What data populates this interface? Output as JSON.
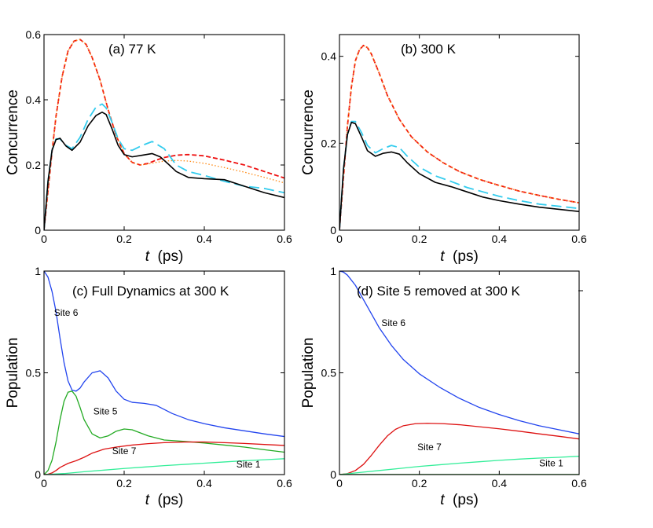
{
  "chart_data": [
    {
      "id": "a",
      "type": "line",
      "title": "(a) 77 K",
      "xlabel": "t  (ps)",
      "ylabel": "Concurrence",
      "xlim": [
        0,
        0.6
      ],
      "ylim": [
        0,
        0.6
      ],
      "xticks": [
        {
          "v": 0,
          "label": "0"
        },
        {
          "v": 0.2,
          "label": "0.2"
        },
        {
          "v": 0.4,
          "label": "0.4"
        },
        {
          "v": 0.6,
          "label": "0.6"
        }
      ],
      "yticks": [
        {
          "v": 0,
          "label": "0"
        },
        {
          "v": 0.2,
          "label": "0.2"
        },
        {
          "v": 0.4,
          "label": "0.4"
        },
        {
          "v": 0.6,
          "label": "0.6"
        }
      ],
      "series": [
        {
          "name": "red dashed",
          "color": "#ee1111",
          "style": "dash",
          "width": 1.8,
          "x": [
            0,
            0.01,
            0.02,
            0.03,
            0.045,
            0.06,
            0.075,
            0.09,
            0.105,
            0.12,
            0.14,
            0.16,
            0.18,
            0.2,
            0.22,
            0.24,
            0.26,
            0.28,
            0.3,
            0.33,
            0.36,
            0.4,
            0.45,
            0.5,
            0.55,
            0.6
          ],
          "y": [
            0,
            0.12,
            0.24,
            0.35,
            0.47,
            0.55,
            0.58,
            0.585,
            0.57,
            0.53,
            0.46,
            0.37,
            0.29,
            0.235,
            0.208,
            0.2,
            0.205,
            0.215,
            0.223,
            0.23,
            0.232,
            0.228,
            0.215,
            0.2,
            0.18,
            0.16
          ]
        },
        {
          "name": "orange dotted",
          "color": "#ff8811",
          "style": "dot",
          "width": 1.3,
          "x": [
            0,
            0.01,
            0.02,
            0.03,
            0.045,
            0.06,
            0.075,
            0.09,
            0.105,
            0.12,
            0.14,
            0.16,
            0.18,
            0.2,
            0.22,
            0.24,
            0.26,
            0.28,
            0.3,
            0.33,
            0.36,
            0.4,
            0.45,
            0.5,
            0.55,
            0.6
          ],
          "y": [
            0,
            0.12,
            0.24,
            0.35,
            0.47,
            0.55,
            0.58,
            0.585,
            0.57,
            0.53,
            0.46,
            0.37,
            0.29,
            0.235,
            0.208,
            0.2,
            0.203,
            0.208,
            0.212,
            0.214,
            0.212,
            0.205,
            0.192,
            0.178,
            0.162,
            0.145
          ]
        },
        {
          "name": "cyan long-dashed",
          "color": "#33ccee",
          "style": "longdash",
          "width": 1.8,
          "x": [
            0,
            0.01,
            0.02,
            0.03,
            0.04,
            0.055,
            0.07,
            0.09,
            0.11,
            0.13,
            0.145,
            0.155,
            0.17,
            0.185,
            0.2,
            0.22,
            0.245,
            0.27,
            0.3,
            0.33,
            0.36,
            0.4,
            0.45,
            0.5,
            0.55,
            0.6
          ],
          "y": [
            0,
            0.15,
            0.245,
            0.28,
            0.28,
            0.26,
            0.25,
            0.285,
            0.34,
            0.378,
            0.387,
            0.375,
            0.33,
            0.28,
            0.25,
            0.245,
            0.26,
            0.272,
            0.25,
            0.2,
            0.18,
            0.168,
            0.15,
            0.135,
            0.128,
            0.115
          ]
        },
        {
          "name": "black solid",
          "color": "#000000",
          "style": "solid",
          "width": 1.6,
          "x": [
            0,
            0.01,
            0.02,
            0.03,
            0.04,
            0.055,
            0.07,
            0.09,
            0.11,
            0.13,
            0.145,
            0.155,
            0.17,
            0.185,
            0.2,
            0.22,
            0.245,
            0.27,
            0.29,
            0.31,
            0.33,
            0.36,
            0.4,
            0.45,
            0.5,
            0.55,
            0.6
          ],
          "y": [
            0,
            0.15,
            0.245,
            0.278,
            0.282,
            0.258,
            0.245,
            0.27,
            0.32,
            0.352,
            0.362,
            0.355,
            0.31,
            0.26,
            0.232,
            0.225,
            0.23,
            0.235,
            0.225,
            0.203,
            0.18,
            0.162,
            0.158,
            0.155,
            0.135,
            0.115,
            0.1
          ]
        }
      ],
      "annotations": []
    },
    {
      "id": "b",
      "type": "line",
      "title": "(b) 300 K",
      "xlabel": "t  (ps)",
      "ylabel": "Concurrence",
      "xlim": [
        0,
        0.6
      ],
      "ylim": [
        0,
        0.45
      ],
      "xticks": [
        {
          "v": 0,
          "label": "0"
        },
        {
          "v": 0.2,
          "label": "0.2"
        },
        {
          "v": 0.4,
          "label": "0.4"
        },
        {
          "v": 0.6,
          "label": "0.6"
        }
      ],
      "yticks": [
        {
          "v": 0,
          "label": "0"
        },
        {
          "v": 0.2,
          "label": "0.2"
        },
        {
          "v": 0.4,
          "label": "0.4"
        }
      ],
      "series": [
        {
          "name": "red dashed",
          "color": "#ee1111",
          "style": "dash",
          "width": 1.8,
          "x": [
            0,
            0.01,
            0.02,
            0.03,
            0.04,
            0.05,
            0.06,
            0.07,
            0.08,
            0.1,
            0.12,
            0.15,
            0.18,
            0.22,
            0.26,
            0.3,
            0.35,
            0.4,
            0.45,
            0.5,
            0.55,
            0.6
          ],
          "y": [
            0,
            0.12,
            0.24,
            0.33,
            0.39,
            0.415,
            0.425,
            0.42,
            0.405,
            0.36,
            0.31,
            0.255,
            0.215,
            0.18,
            0.155,
            0.135,
            0.117,
            0.103,
            0.09,
            0.08,
            0.071,
            0.063
          ]
        },
        {
          "name": "orange dotted",
          "color": "#ff8811",
          "style": "dot",
          "width": 1.3,
          "x": [
            0,
            0.01,
            0.02,
            0.03,
            0.04,
            0.05,
            0.06,
            0.07,
            0.08,
            0.1,
            0.12,
            0.15,
            0.18,
            0.22,
            0.26,
            0.3,
            0.35,
            0.4,
            0.45,
            0.5,
            0.55,
            0.6
          ],
          "y": [
            0,
            0.12,
            0.24,
            0.33,
            0.39,
            0.415,
            0.425,
            0.42,
            0.405,
            0.36,
            0.31,
            0.255,
            0.215,
            0.18,
            0.155,
            0.135,
            0.117,
            0.103,
            0.09,
            0.08,
            0.071,
            0.063
          ]
        },
        {
          "name": "cyan long-dashed",
          "color": "#33ccee",
          "style": "longdash",
          "width": 1.8,
          "x": [
            0,
            0.01,
            0.02,
            0.03,
            0.04,
            0.055,
            0.07,
            0.09,
            0.11,
            0.13,
            0.15,
            0.17,
            0.2,
            0.24,
            0.28,
            0.32,
            0.36,
            0.4,
            0.45,
            0.5,
            0.55,
            0.6
          ],
          "y": [
            0,
            0.14,
            0.22,
            0.25,
            0.25,
            0.225,
            0.195,
            0.178,
            0.188,
            0.195,
            0.19,
            0.17,
            0.145,
            0.125,
            0.112,
            0.098,
            0.088,
            0.078,
            0.068,
            0.06,
            0.055,
            0.05
          ]
        },
        {
          "name": "black solid",
          "color": "#000000",
          "style": "solid",
          "width": 1.6,
          "x": [
            0,
            0.01,
            0.02,
            0.03,
            0.04,
            0.055,
            0.07,
            0.09,
            0.11,
            0.13,
            0.15,
            0.17,
            0.2,
            0.24,
            0.28,
            0.32,
            0.36,
            0.4,
            0.45,
            0.5,
            0.55,
            0.6
          ],
          "y": [
            0,
            0.14,
            0.22,
            0.248,
            0.245,
            0.215,
            0.183,
            0.17,
            0.177,
            0.18,
            0.175,
            0.155,
            0.13,
            0.11,
            0.1,
            0.088,
            0.076,
            0.068,
            0.06,
            0.053,
            0.048,
            0.043
          ]
        }
      ],
      "annotations": []
    },
    {
      "id": "c",
      "type": "line",
      "title": "(c) Full Dynamics at 300 K",
      "xlabel": "t  (ps)",
      "ylabel": "Population",
      "xlim": [
        0,
        0.6
      ],
      "ylim": [
        0,
        1
      ],
      "xticks": [
        {
          "v": 0,
          "label": "0"
        },
        {
          "v": 0.2,
          "label": "0.2"
        },
        {
          "v": 0.4,
          "label": "0.4"
        },
        {
          "v": 0.6,
          "label": "0.6"
        }
      ],
      "yticks": [
        {
          "v": 0,
          "label": "0"
        },
        {
          "v": 0.5,
          "label": "0.5"
        },
        {
          "v": 1,
          "label": "1"
        }
      ],
      "series": [
        {
          "name": "Site 6",
          "color": "#2244ee",
          "style": "solid",
          "width": 1.3,
          "x": [
            0,
            0.01,
            0.02,
            0.03,
            0.04,
            0.05,
            0.06,
            0.07,
            0.08,
            0.09,
            0.1,
            0.12,
            0.14,
            0.16,
            0.18,
            0.2,
            0.22,
            0.25,
            0.28,
            0.32,
            0.36,
            0.4,
            0.45,
            0.5,
            0.55,
            0.6
          ],
          "y": [
            1.0,
            0.97,
            0.9,
            0.8,
            0.67,
            0.55,
            0.46,
            0.415,
            0.41,
            0.425,
            0.455,
            0.5,
            0.51,
            0.475,
            0.41,
            0.37,
            0.355,
            0.35,
            0.34,
            0.3,
            0.27,
            0.25,
            0.23,
            0.215,
            0.2,
            0.187
          ]
        },
        {
          "name": "Site 5",
          "color": "#22aa22",
          "style": "solid",
          "width": 1.3,
          "x": [
            0,
            0.01,
            0.02,
            0.03,
            0.04,
            0.05,
            0.06,
            0.07,
            0.08,
            0.09,
            0.1,
            0.12,
            0.14,
            0.16,
            0.18,
            0.2,
            0.22,
            0.24,
            0.26,
            0.3,
            0.35,
            0.4,
            0.45,
            0.5,
            0.55,
            0.6
          ],
          "y": [
            0,
            0.02,
            0.07,
            0.16,
            0.27,
            0.36,
            0.405,
            0.41,
            0.385,
            0.33,
            0.27,
            0.2,
            0.18,
            0.19,
            0.213,
            0.224,
            0.22,
            0.205,
            0.19,
            0.17,
            0.163,
            0.155,
            0.145,
            0.135,
            0.122,
            0.11
          ]
        },
        {
          "name": "Site 7",
          "color": "#dd1111",
          "style": "solid",
          "width": 1.3,
          "x": [
            0,
            0.01,
            0.02,
            0.03,
            0.04,
            0.06,
            0.08,
            0.1,
            0.12,
            0.15,
            0.18,
            0.22,
            0.26,
            0.3,
            0.35,
            0.4,
            0.45,
            0.5,
            0.55,
            0.6
          ],
          "y": [
            0,
            0.002,
            0.008,
            0.02,
            0.035,
            0.055,
            0.068,
            0.085,
            0.105,
            0.125,
            0.135,
            0.145,
            0.152,
            0.157,
            0.16,
            0.16,
            0.157,
            0.153,
            0.148,
            0.143
          ]
        },
        {
          "name": "Site 1",
          "color": "#33ee99",
          "style": "solid",
          "width": 1.3,
          "x": [
            0,
            0.05,
            0.1,
            0.15,
            0.2,
            0.25,
            0.3,
            0.35,
            0.4,
            0.45,
            0.5,
            0.55,
            0.6
          ],
          "y": [
            0,
            0.005,
            0.014,
            0.022,
            0.03,
            0.037,
            0.044,
            0.05,
            0.056,
            0.062,
            0.068,
            0.073,
            0.078
          ]
        }
      ],
      "annotations": [
        {
          "text": "Site 6",
          "x": 0.025,
          "y": 0.78
        },
        {
          "text": "Site 5",
          "x": 0.123,
          "y": 0.295
        },
        {
          "text": "Site 7",
          "x": 0.17,
          "y": 0.1
        },
        {
          "text": "Site 1",
          "x": 0.48,
          "y": 0.035
        }
      ]
    },
    {
      "id": "d",
      "type": "line",
      "title": "(d) Site 5 removed at 300 K",
      "xlabel": "t  (ps)",
      "ylabel": "Population",
      "xlim": [
        0,
        0.6
      ],
      "ylim": [
        0,
        1
      ],
      "xticks": [
        {
          "v": 0,
          "label": "0"
        },
        {
          "v": 0.2,
          "label": "0.2"
        },
        {
          "v": 0.4,
          "label": "0.4"
        },
        {
          "v": 0.6,
          "label": "0.6"
        }
      ],
      "yticks": [
        {
          "v": 0,
          "label": "0"
        },
        {
          "v": 0.5,
          "label": "0.5"
        },
        {
          "v": 1,
          "label": "1"
        }
      ],
      "series": [
        {
          "name": "Site 6",
          "color": "#2244ee",
          "style": "solid",
          "width": 1.3,
          "x": [
            0,
            0.01,
            0.02,
            0.04,
            0.06,
            0.08,
            0.1,
            0.13,
            0.16,
            0.2,
            0.25,
            0.3,
            0.35,
            0.4,
            0.45,
            0.5,
            0.55,
            0.6
          ],
          "y": [
            1.0,
            0.995,
            0.98,
            0.93,
            0.86,
            0.79,
            0.72,
            0.635,
            0.565,
            0.495,
            0.43,
            0.375,
            0.33,
            0.295,
            0.265,
            0.24,
            0.22,
            0.2
          ]
        },
        {
          "name": "Site 7",
          "color": "#dd1111",
          "style": "solid",
          "width": 1.3,
          "x": [
            0,
            0.02,
            0.04,
            0.06,
            0.08,
            0.1,
            0.12,
            0.14,
            0.16,
            0.19,
            0.22,
            0.26,
            0.3,
            0.35,
            0.4,
            0.45,
            0.5,
            0.55,
            0.6
          ],
          "y": [
            0,
            0.005,
            0.02,
            0.05,
            0.095,
            0.145,
            0.19,
            0.222,
            0.24,
            0.25,
            0.252,
            0.25,
            0.245,
            0.235,
            0.225,
            0.213,
            0.2,
            0.188,
            0.175
          ]
        },
        {
          "name": "Site 1",
          "color": "#33ee99",
          "style": "solid",
          "width": 1.3,
          "x": [
            0,
            0.05,
            0.1,
            0.15,
            0.2,
            0.25,
            0.3,
            0.35,
            0.4,
            0.45,
            0.5,
            0.55,
            0.6
          ],
          "y": [
            0,
            0.01,
            0.02,
            0.03,
            0.04,
            0.048,
            0.056,
            0.063,
            0.07,
            0.076,
            0.081,
            0.085,
            0.09
          ]
        },
        {
          "name": "Site 5",
          "color": "#22aa22",
          "style": "solid",
          "width": 1.6,
          "x": [
            0,
            0.6
          ],
          "y": [
            0,
            0
          ]
        }
      ],
      "annotations": [
        {
          "text": "Site 6",
          "x": 0.105,
          "y": 0.73
        },
        {
          "text": "Site 7",
          "x": 0.195,
          "y": 0.12
        },
        {
          "text": "Site 1",
          "x": 0.5,
          "y": 0.04
        }
      ]
    }
  ]
}
